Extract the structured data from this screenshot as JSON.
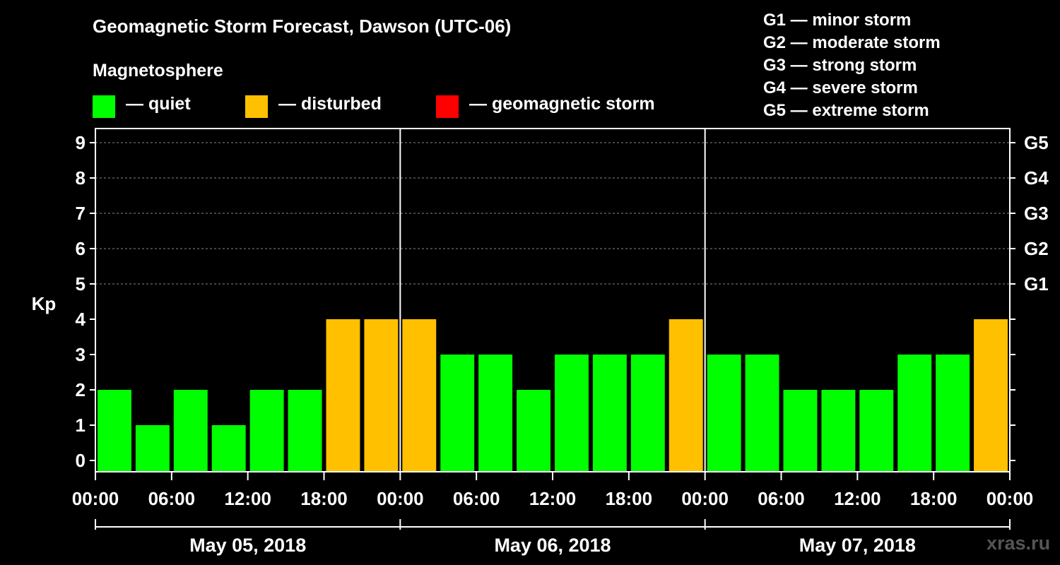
{
  "title": "Geomagnetic Storm Forecast, Dawson (UTC-06)",
  "legend": {
    "heading": "Magnetosphere",
    "items": [
      {
        "label": "— quiet",
        "color": "#00ff00"
      },
      {
        "label": "— disturbed",
        "color": "#ffc000"
      },
      {
        "label": "— geomagnetic storm",
        "color": "#ff0000"
      }
    ]
  },
  "g_scale": [
    {
      "text": "G1 — minor storm"
    },
    {
      "text": "G2 — moderate storm"
    },
    {
      "text": "G3 — strong storm"
    },
    {
      "text": "G4 — severe storm"
    },
    {
      "text": "G5 — extreme storm"
    }
  ],
  "watermark": "xras.ru",
  "chart_data": {
    "type": "bar",
    "ylabel": "Kp",
    "ylim": [
      0,
      9
    ],
    "y_ticks": [
      "0",
      "1",
      "2",
      "3",
      "4",
      "5",
      "6",
      "7",
      "8",
      "9"
    ],
    "right_axis_labels": [
      {
        "kp": 5,
        "label": "G1"
      },
      {
        "kp": 6,
        "label": "G2"
      },
      {
        "kp": 7,
        "label": "G3"
      },
      {
        "kp": 8,
        "label": "G4"
      },
      {
        "kp": 9,
        "label": "G5"
      }
    ],
    "grid": "dashed horizontal at Kp 5-9",
    "x_tick_labels": [
      "00:00",
      "06:00",
      "12:00",
      "18:00",
      "00:00",
      "06:00",
      "12:00",
      "18:00",
      "00:00",
      "06:00",
      "12:00",
      "18:00",
      "00:00"
    ],
    "days": [
      "May 05, 2018",
      "May 06, 2018",
      "May 07, 2018"
    ],
    "interval_hours": 3,
    "values": [
      2,
      1,
      2,
      1,
      2,
      2,
      4,
      4,
      4,
      3,
      3,
      2,
      3,
      3,
      3,
      4,
      3,
      3,
      2,
      2,
      2,
      3,
      3,
      4
    ],
    "colors": {
      "quiet": "#00ff00",
      "disturbed": "#ffc000",
      "storm": "#ff0000"
    }
  }
}
